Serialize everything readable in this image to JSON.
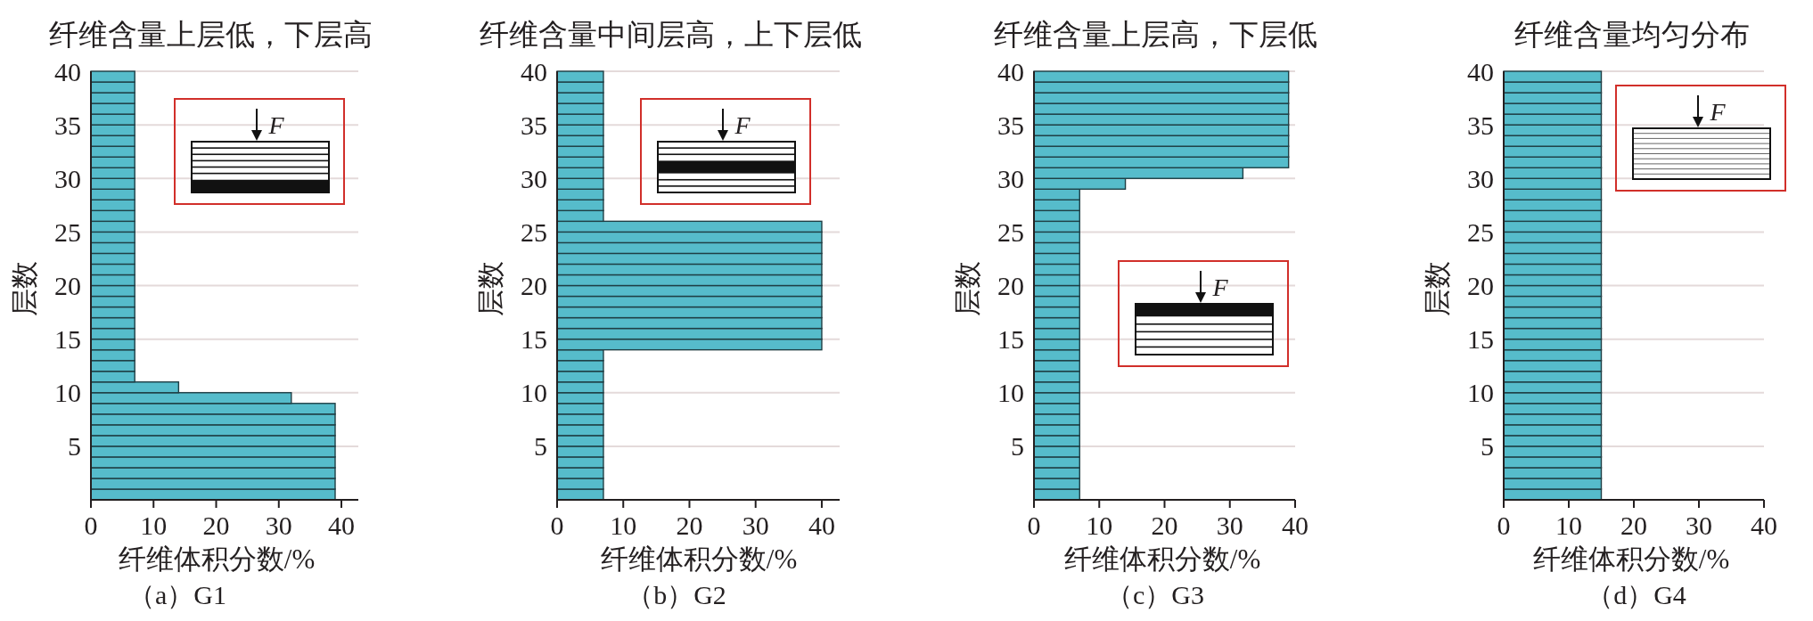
{
  "chart_data": [
    {
      "type": "histogram",
      "orientation": "horizontal",
      "title": "纤维含量上层低，下层高",
      "xlabel": "纤维体积分数/%",
      "ylabel": "层数",
      "annotations": [
        "F",
        "（a）G1"
      ],
      "bins": [
        0,
        1,
        2,
        3,
        4,
        5,
        6,
        7,
        8,
        9,
        10,
        11,
        12,
        13,
        14,
        15,
        16,
        17,
        18,
        19,
        20,
        21,
        22,
        23,
        24,
        25,
        26,
        27,
        28,
        29,
        30,
        31,
        32,
        33,
        34,
        35,
        36,
        37,
        38,
        39,
        40
      ],
      "values": [
        39,
        39,
        39,
        39,
        39,
        39,
        39,
        39,
        39,
        32,
        14,
        7,
        7,
        7,
        7,
        7,
        7,
        7,
        7,
        7,
        7,
        7,
        7,
        7,
        7,
        7,
        7,
        7,
        7,
        7,
        7,
        7,
        7,
        7,
        7,
        7,
        7,
        7,
        7,
        7
      ],
      "color": "#56bccb",
      "xlim": [
        0,
        42.7
      ],
      "xticks": [
        0,
        10,
        20,
        30,
        40
      ],
      "ylim": [
        0,
        40
      ],
      "yticks": [
        5,
        10,
        15,
        20,
        25,
        30,
        35,
        40
      ],
      "grid": "y"
    },
    {
      "type": "histogram",
      "orientation": "horizontal",
      "title": "纤维含量中间层高，上下层低",
      "xlabel": "纤维体积分数/%",
      "ylabel": "层数",
      "annotations": [
        "F",
        "（b）G2"
      ],
      "bins": [
        0,
        1,
        2,
        3,
        4,
        5,
        6,
        7,
        8,
        9,
        10,
        11,
        12,
        13,
        14,
        15,
        16,
        17,
        18,
        19,
        20,
        21,
        22,
        23,
        24,
        25,
        26,
        27,
        28,
        29,
        30,
        31,
        32,
        33,
        34,
        35,
        36,
        37,
        38,
        39,
        40
      ],
      "values": [
        7,
        7,
        7,
        7,
        7,
        7,
        7,
        7,
        7,
        7,
        7,
        7,
        7,
        7,
        40,
        40,
        40,
        40,
        40,
        40,
        40,
        40,
        40,
        40,
        40,
        40,
        7,
        7,
        7,
        7,
        7,
        7,
        7,
        7,
        7,
        7,
        7,
        7,
        7,
        7
      ],
      "color": "#56bccb",
      "xlim": [
        0,
        42.7
      ],
      "xticks": [
        0,
        10,
        20,
        30,
        40
      ],
      "ylim": [
        0,
        40
      ],
      "yticks": [
        5,
        10,
        15,
        20,
        25,
        30,
        35,
        40
      ],
      "grid": "y"
    },
    {
      "type": "histogram",
      "orientation": "horizontal",
      "title": "纤维含量上层高，下层低",
      "xlabel": "纤维体积分数/%",
      "ylabel": "层数",
      "annotations": [
        "F",
        "（c）G3"
      ],
      "bins": [
        0,
        1,
        2,
        3,
        4,
        5,
        6,
        7,
        8,
        9,
        10,
        11,
        12,
        13,
        14,
        15,
        16,
        17,
        18,
        19,
        20,
        21,
        22,
        23,
        24,
        25,
        26,
        27,
        28,
        29,
        30,
        31,
        32,
        33,
        34,
        35,
        36,
        37,
        38,
        39,
        40
      ],
      "values": [
        7,
        7,
        7,
        7,
        7,
        7,
        7,
        7,
        7,
        7,
        7,
        7,
        7,
        7,
        7,
        7,
        7,
        7,
        7,
        7,
        7,
        7,
        7,
        7,
        7,
        7,
        7,
        7,
        7,
        14,
        32,
        39,
        39,
        39,
        39,
        39,
        39,
        39,
        39,
        39
      ],
      "color": "#56bccb",
      "xlim": [
        0,
        40
      ],
      "xticks": [
        0,
        10,
        20,
        30,
        40
      ],
      "ylim": [
        0,
        40
      ],
      "yticks": [
        5,
        10,
        15,
        20,
        25,
        30,
        35,
        40
      ],
      "grid": "y"
    },
    {
      "type": "histogram",
      "orientation": "horizontal",
      "title": "纤维含量均匀分布",
      "xlabel": "纤维体积分数/%",
      "ylabel": "层数",
      "annotations": [
        "F",
        "（d）G4"
      ],
      "bins": [
        0,
        1,
        2,
        3,
        4,
        5,
        6,
        7,
        8,
        9,
        10,
        11,
        12,
        13,
        14,
        15,
        16,
        17,
        18,
        19,
        20,
        21,
        22,
        23,
        24,
        25,
        26,
        27,
        28,
        29,
        30,
        31,
        32,
        33,
        34,
        35,
        36,
        37,
        38,
        39,
        40
      ],
      "values": [
        15,
        15,
        15,
        15,
        15,
        15,
        15,
        15,
        15,
        15,
        15,
        15,
        15,
        15,
        15,
        15,
        15,
        15,
        15,
        15,
        15,
        15,
        15,
        15,
        15,
        15,
        15,
        15,
        15,
        15,
        15,
        15,
        15,
        15,
        15,
        15,
        15,
        15,
        15,
        15
      ],
      "color": "#56bccb",
      "xlim": [
        0,
        40
      ],
      "xticks": [
        0,
        10,
        20,
        30,
        40
      ],
      "ylim": [
        0,
        40
      ],
      "yticks": [
        5,
        10,
        15,
        20,
        25,
        30,
        35,
        40
      ],
      "grid": "y"
    }
  ]
}
